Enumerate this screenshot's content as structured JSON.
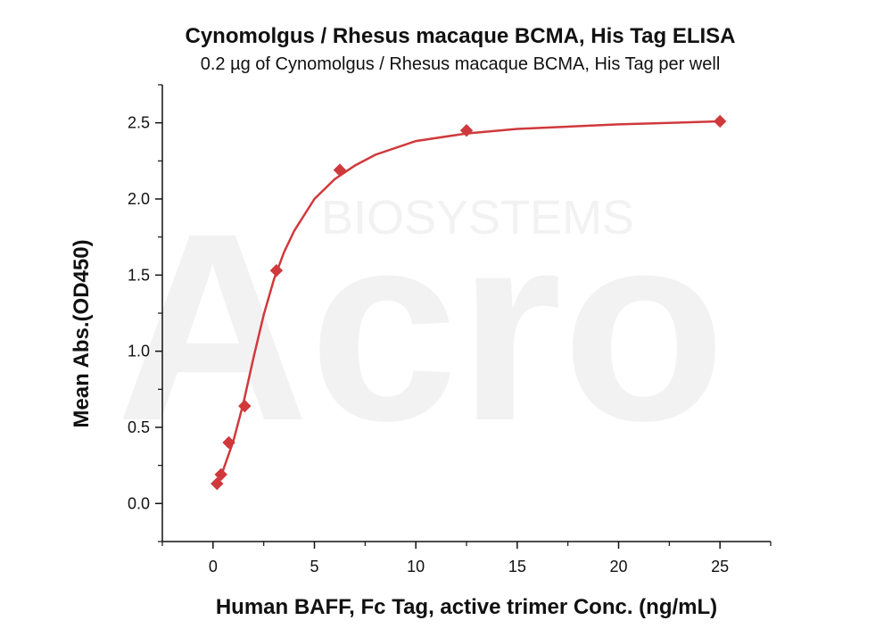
{
  "chart_data": {
    "type": "scatter",
    "title": "Cynomolgus / Rhesus macaque BCMA, His Tag ELISA",
    "subtitle": "0.2 µg of Cynomolgus / Rhesus macaque BCMA, His Tag per well",
    "xlabel": "Human BAFF, Fc Tag, active trimer Conc. (ng/mL)",
    "ylabel": "Mean Abs.(OD450)",
    "xlim": [
      -2.5,
      27.5
    ],
    "ylim": [
      -0.25,
      2.75
    ],
    "xticks": [
      0,
      5,
      10,
      15,
      20,
      25
    ],
    "xtick_labels": [
      "0",
      "5",
      "10",
      "15",
      "20",
      "25"
    ],
    "yticks": [
      0.0,
      0.5,
      1.0,
      1.5,
      2.0,
      2.5
    ],
    "ytick_labels": [
      "0.0",
      "0.5",
      "1.0",
      "1.5",
      "2.0",
      "2.5"
    ],
    "grid": false,
    "color": "#d0393c",
    "points": [
      {
        "x": 0.195,
        "y": 0.13
      },
      {
        "x": 0.39,
        "y": 0.19
      },
      {
        "x": 0.78,
        "y": 0.4
      },
      {
        "x": 1.56,
        "y": 0.64
      },
      {
        "x": 3.125,
        "y": 1.53
      },
      {
        "x": 6.25,
        "y": 2.19
      },
      {
        "x": 12.5,
        "y": 2.45
      },
      {
        "x": 25,
        "y": 2.51
      }
    ],
    "fit_curve": [
      {
        "x": 0.195,
        "y": 0.13
      },
      {
        "x": 0.5,
        "y": 0.22
      },
      {
        "x": 1.0,
        "y": 0.41
      },
      {
        "x": 1.5,
        "y": 0.66
      },
      {
        "x": 2.0,
        "y": 0.96
      },
      {
        "x": 2.5,
        "y": 1.24
      },
      {
        "x": 3.0,
        "y": 1.47
      },
      {
        "x": 3.5,
        "y": 1.65
      },
      {
        "x": 4.0,
        "y": 1.79
      },
      {
        "x": 5.0,
        "y": 2.0
      },
      {
        "x": 6.0,
        "y": 2.13
      },
      {
        "x": 7.0,
        "y": 2.22
      },
      {
        "x": 8.0,
        "y": 2.29
      },
      {
        "x": 10.0,
        "y": 2.38
      },
      {
        "x": 12.5,
        "y": 2.43
      },
      {
        "x": 15.0,
        "y": 2.46
      },
      {
        "x": 20.0,
        "y": 2.49
      },
      {
        "x": 25.0,
        "y": 2.51
      }
    ]
  },
  "watermark": {
    "big": "Acro",
    "small": "BIOSYSTEMS"
  }
}
